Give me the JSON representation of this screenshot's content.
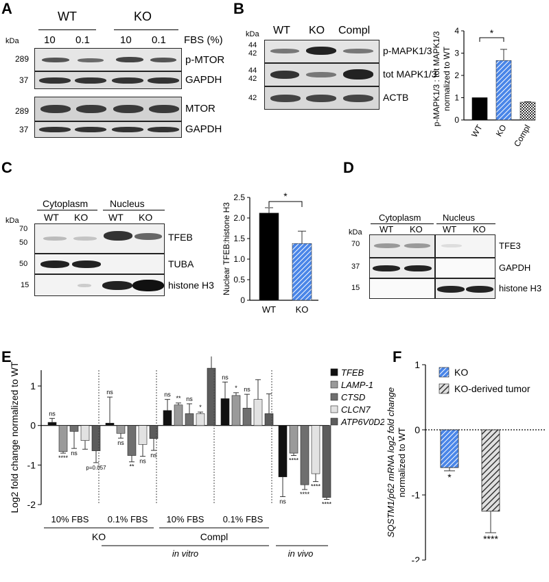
{
  "panels": {
    "A": {
      "label": "A",
      "groups": [
        "WT",
        "KO"
      ],
      "conditions": [
        "10",
        "0.1",
        "10",
        "0.1"
      ],
      "condition_label": "FBS (%)",
      "kda_header": "kDa",
      "blots": [
        {
          "name": "p-MTOR",
          "kda": "289"
        },
        {
          "name": "GAPDH",
          "kda": "37"
        },
        {
          "name": "MTOR",
          "kda": "289"
        },
        {
          "name": "GAPDH",
          "kda": "37"
        }
      ]
    },
    "B": {
      "label": "B",
      "kda_header": "kDa",
      "lanes": [
        "WT",
        "KO",
        "Compl"
      ],
      "blots": [
        {
          "name": "p-MAPK1/3",
          "kda_top": "44",
          "kda_bottom": "42"
        },
        {
          "name": "tot MAPK1/3",
          "kda_top": "44",
          "kda_bottom": "42"
        },
        {
          "name": "ACTB",
          "kda_top": "",
          "kda_bottom": "42"
        }
      ]
    },
    "C": {
      "label": "C",
      "kda_header": "kDa",
      "fractions": [
        "Cytoplasm",
        "Nucleus"
      ],
      "lanes": [
        "WT",
        "KO",
        "WT",
        "KO"
      ],
      "blots": [
        {
          "name": "TFEB",
          "kda_top": "70",
          "kda_bottom": "50"
        },
        {
          "name": "TUBA",
          "kda_top": "",
          "kda_bottom": "50"
        },
        {
          "name": "histone H3",
          "kda_top": "",
          "kda_bottom": "15"
        }
      ]
    },
    "D": {
      "label": "D",
      "kda_header": "kDa",
      "fractions": [
        "Cytoplasm",
        "Nucleus"
      ],
      "lanes": [
        "WT",
        "KO",
        "WT",
        "KO"
      ],
      "blots": [
        {
          "name": "TFE3",
          "kda": "70"
        },
        {
          "name": "GAPDH",
          "kda": "37"
        },
        {
          "name": "histone H3",
          "kda": "15"
        }
      ]
    },
    "E": {
      "label": "E"
    },
    "F": {
      "label": "F"
    }
  },
  "chart_data": [
    {
      "id": "B",
      "type": "bar",
      "categories": [
        "WT",
        "KO",
        "Compl"
      ],
      "values": [
        1.0,
        2.67,
        0.8
      ],
      "errors": [
        0,
        0.5,
        0.02
      ],
      "ylabel_lines": [
        "p-MAPK1/3 : tot MAPK1/3",
        "normalized to WT"
      ],
      "ylim": [
        0,
        4
      ],
      "yticks": [
        "0",
        "1",
        "2",
        "3",
        "4"
      ],
      "significance": "*",
      "colors": [
        "#000000",
        "#4a86e8",
        "#777777"
      ]
    },
    {
      "id": "C",
      "type": "bar",
      "categories": [
        "WT",
        "KO"
      ],
      "values": [
        2.12,
        1.38
      ],
      "errors": [
        0.13,
        0.3
      ],
      "ylabel": "Nuclear TFEB:histone H3",
      "ylim": [
        0,
        2.5
      ],
      "yticks": [
        "0",
        "0.5",
        "1.0",
        "1.5",
        "2.0",
        "2.5"
      ],
      "significance": "*",
      "colors": [
        "#000000",
        "#4a86e8"
      ]
    },
    {
      "id": "E",
      "type": "bar",
      "ylabel": "Log2 fold change normalized to WT",
      "ylim": [
        -2,
        2
      ],
      "yticks": [
        "-2",
        "-1",
        "0",
        "1"
      ],
      "series_names": [
        "TFEB",
        "LAMP-1",
        "CTSD",
        "CLCN7",
        "ATP6V0D2"
      ],
      "series_colors": [
        "#111111",
        "#9a9a9a",
        "#6f6f6f",
        "#e2e2e2",
        "#5c5c5c"
      ],
      "groups": [
        {
          "label": "10% FBS",
          "values": [
            0.08,
            -0.66,
            -0.15,
            -0.38,
            -0.64
          ],
          "errors": [
            0.1,
            0.04,
            0.43,
            0.22,
            0.3
          ],
          "sig": [
            "ns",
            "****",
            "ns",
            "",
            "p=0.057"
          ]
        },
        {
          "label": "0.1% FBS",
          "values": [
            0.06,
            -0.2,
            -0.76,
            -0.48,
            -0.33
          ],
          "errors": [
            0.66,
            0.12,
            0.16,
            0.3,
            0.3
          ],
          "sig": [
            "ns",
            "ns",
            "**",
            "ns",
            "ns"
          ]
        },
        {
          "label": "10% FBS",
          "values": [
            0.38,
            0.52,
            0.3,
            0.3,
            1.45
          ],
          "errors": [
            0.28,
            0.05,
            0.25,
            0.04,
            0.38
          ],
          "sig": [
            "ns",
            "**",
            "ns",
            "*",
            "ns"
          ]
        },
        {
          "label": "0.1% FBS",
          "values": [
            0.68,
            0.76,
            0.44,
            0.66,
            0.3
          ],
          "errors": [
            0.42,
            0.07,
            0.35,
            0.5,
            0.5
          ],
          "sig": [
            "ns",
            "*",
            "ns",
            "",
            ""
          ]
        },
        {
          "label": "",
          "values": [
            -1.3,
            -0.7,
            -1.5,
            -1.22,
            -1.82
          ],
          "errors": [
            0.5,
            0.06,
            0.12,
            0.2,
            0.05
          ],
          "sig": [
            "ns",
            "****",
            "****",
            "****",
            "****"
          ]
        }
      ],
      "lines": [
        "KO",
        "Compl"
      ],
      "annotations": [
        "in vitro",
        "in vivo"
      ]
    },
    {
      "id": "F",
      "type": "bar",
      "categories": [
        "KO",
        "KO-derived tumor"
      ],
      "values": [
        -0.58,
        -1.25
      ],
      "errors": [
        0.05,
        0.33
      ],
      "sig": [
        "*",
        "****"
      ],
      "ylabel_lines": [
        "SQSTM1/p62 mRNA log2 fold change",
        "normalized to WT"
      ],
      "ylim": [
        -2,
        1
      ],
      "yticks": [
        "-2",
        "-1",
        "0",
        "1"
      ],
      "legend": [
        "KO",
        "KO-derived tumor"
      ],
      "colors": [
        "#4a86e8",
        "#888888"
      ]
    }
  ]
}
